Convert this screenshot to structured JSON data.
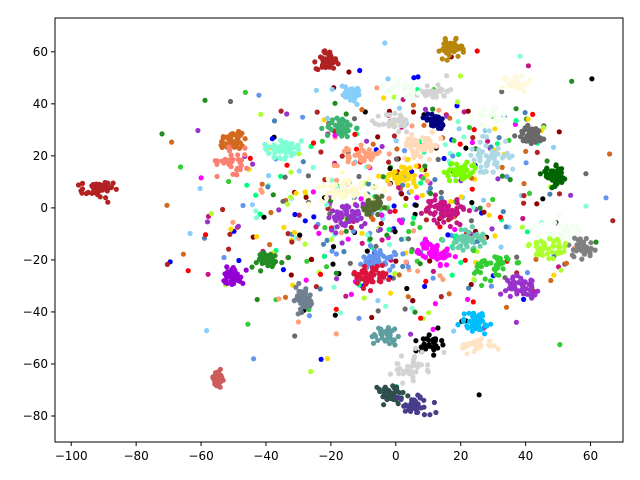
{
  "chart_data": {
    "type": "scatter",
    "title": "",
    "xlabel": "",
    "ylabel": "",
    "xlim": [
      -105,
      70
    ],
    "ylim": [
      -90,
      73
    ],
    "x_ticks": [
      -100,
      -80,
      -60,
      -40,
      -20,
      0,
      20,
      40,
      60
    ],
    "y_ticks": [
      -80,
      -60,
      -40,
      -20,
      0,
      20,
      40,
      60
    ],
    "x_tick_labels": [
      "−100",
      "−80",
      "−60",
      "−40",
      "−20",
      "0",
      "20",
      "40",
      "60"
    ],
    "y_tick_labels": [
      "−80",
      "−60",
      "−40",
      "−20",
      "0",
      "20",
      "40",
      "60"
    ],
    "grid": false,
    "legend": "none",
    "clusters": [
      {
        "color": "#b22222",
        "center": [
          -92,
          7
        ],
        "spread": [
          2.4,
          1.6
        ],
        "n": 45
      },
      {
        "color": "#cd5c5c",
        "center": [
          -55,
          -66
        ],
        "spread": [
          1.3,
          1.8
        ],
        "n": 30
      },
      {
        "color": "#b22222",
        "center": [
          -21,
          57
        ],
        "spread": [
          1.7,
          1.8
        ],
        "n": 45
      },
      {
        "color": "#b8860b",
        "center": [
          17,
          61
        ],
        "spread": [
          1.7,
          1.7
        ],
        "n": 45
      },
      {
        "color": "#87cefa",
        "center": [
          -14,
          44
        ],
        "spread": [
          2.2,
          1.6
        ],
        "n": 35
      },
      {
        "color": "#fff8dc",
        "center": [
          37,
          48
        ],
        "spread": [
          2.0,
          1.6
        ],
        "n": 30
      },
      {
        "color": "#d3d3d3",
        "center": [
          12,
          45
        ],
        "spread": [
          2.2,
          1.7
        ],
        "n": 30
      },
      {
        "color": "#f0fff0",
        "center": [
          3,
          45
        ],
        "spread": [
          3.0,
          2.0
        ],
        "n": 25
      },
      {
        "color": "#3cb371",
        "center": [
          -17,
          31
        ],
        "spread": [
          2.2,
          2.0
        ],
        "n": 40
      },
      {
        "color": "#d3d3d3",
        "center": [
          0,
          33
        ],
        "spread": [
          2.3,
          2.0
        ],
        "n": 35
      },
      {
        "color": "#000080",
        "center": [
          12,
          33
        ],
        "spread": [
          1.8,
          1.5
        ],
        "n": 35
      },
      {
        "color": "#696969",
        "center": [
          42,
          28
        ],
        "spread": [
          2.2,
          1.8
        ],
        "n": 45
      },
      {
        "color": "#f0fff0",
        "center": [
          30,
          35
        ],
        "spread": [
          2.5,
          2.0
        ],
        "n": 20
      },
      {
        "color": "#d2691e",
        "center": [
          -50,
          26
        ],
        "spread": [
          2.2,
          2.0
        ],
        "n": 45
      },
      {
        "color": "#fa8072",
        "center": [
          -50,
          18
        ],
        "spread": [
          2.5,
          2.5
        ],
        "n": 30
      },
      {
        "color": "#7fffd4",
        "center": [
          -35,
          23
        ],
        "spread": [
          3.0,
          1.8
        ],
        "n": 50
      },
      {
        "color": "#ffa07a",
        "center": [
          -10,
          20
        ],
        "spread": [
          2.5,
          1.8
        ],
        "n": 40
      },
      {
        "color": "#ffdab9",
        "center": [
          8,
          24
        ],
        "spread": [
          3.0,
          2.0
        ],
        "n": 45
      },
      {
        "color": "#add8e6",
        "center": [
          28,
          20
        ],
        "spread": [
          3.5,
          4.0
        ],
        "n": 50
      },
      {
        "color": "#006400",
        "center": [
          49,
          12
        ],
        "spread": [
          2.0,
          1.8
        ],
        "n": 45
      },
      {
        "color": "#7cfc00",
        "center": [
          20,
          14
        ],
        "spread": [
          2.5,
          2.0
        ],
        "n": 45
      },
      {
        "color": "#ffd700",
        "center": [
          2,
          12
        ],
        "spread": [
          3.0,
          2.5
        ],
        "n": 35
      },
      {
        "color": "#fffacd",
        "center": [
          -15,
          7
        ],
        "spread": [
          4.0,
          3.0
        ],
        "n": 50
      },
      {
        "color": "#556b2f",
        "center": [
          -7,
          0
        ],
        "spread": [
          1.8,
          1.8
        ],
        "n": 35
      },
      {
        "color": "#9932cc",
        "center": [
          -15,
          -3
        ],
        "spread": [
          3.0,
          2.5
        ],
        "n": 45
      },
      {
        "color": "#c71585",
        "center": [
          15,
          -1
        ],
        "spread": [
          3.0,
          2.5
        ],
        "n": 50
      },
      {
        "color": "#66cdaa",
        "center": [
          22,
          -12
        ],
        "spread": [
          2.5,
          2.0
        ],
        "n": 45
      },
      {
        "color": "#ff00ff",
        "center": [
          12,
          -17
        ],
        "spread": [
          2.5,
          2.0
        ],
        "n": 45
      },
      {
        "color": "#f0fff0",
        "center": [
          50,
          -10
        ],
        "spread": [
          4.0,
          2.5
        ],
        "n": 35
      },
      {
        "color": "#808080",
        "center": [
          57,
          -15
        ],
        "spread": [
          2.0,
          2.0
        ],
        "n": 35
      },
      {
        "color": "#adff2f",
        "center": [
          47,
          -16
        ],
        "spread": [
          3.0,
          3.0
        ],
        "n": 45
      },
      {
        "color": "#32cd32",
        "center": [
          30,
          -22
        ],
        "spread": [
          3.0,
          3.0
        ],
        "n": 40
      },
      {
        "color": "#6495ed",
        "center": [
          -5,
          -20
        ],
        "spread": [
          2.5,
          2.0
        ],
        "n": 45
      },
      {
        "color": "#dc143c",
        "center": [
          -8,
          -26
        ],
        "spread": [
          2.5,
          2.0
        ],
        "n": 50
      },
      {
        "color": "#9400d3",
        "center": [
          -50,
          -26
        ],
        "spread": [
          1.6,
          1.8
        ],
        "n": 35
      },
      {
        "color": "#228b22",
        "center": [
          -40,
          -20
        ],
        "spread": [
          2.5,
          1.6
        ],
        "n": 40
      },
      {
        "color": "#708090",
        "center": [
          -29,
          -35
        ],
        "spread": [
          2.0,
          2.5
        ],
        "n": 40
      },
      {
        "color": "#9932cc",
        "center": [
          39,
          -30
        ],
        "spread": [
          2.5,
          1.8
        ],
        "n": 45
      },
      {
        "color": "#00bfff",
        "center": [
          25,
          -44
        ],
        "spread": [
          2.5,
          2.2
        ],
        "n": 45
      },
      {
        "color": "#ffe4c4",
        "center": [
          25,
          -53
        ],
        "spread": [
          2.5,
          1.5
        ],
        "n": 30
      },
      {
        "color": "#5f9ea0",
        "center": [
          -3,
          -49
        ],
        "spread": [
          2.5,
          2.0
        ],
        "n": 30
      },
      {
        "color": "#000000",
        "center": [
          11,
          -52
        ],
        "spread": [
          1.5,
          2.0
        ],
        "n": 30
      },
      {
        "color": "#d3d3d3",
        "center": [
          4,
          -61
        ],
        "spread": [
          3.0,
          2.5
        ],
        "n": 35
      },
      {
        "color": "#2f4f4f",
        "center": [
          -2,
          -72
        ],
        "spread": [
          2.5,
          2.0
        ],
        "n": 45
      },
      {
        "color": "#483d8b",
        "center": [
          6,
          -76
        ],
        "spread": [
          2.5,
          2.0
        ],
        "n": 40
      }
    ],
    "noise": {
      "center": [
        0,
        0
      ],
      "spread": [
        28,
        25
      ],
      "n": 650,
      "colors": [
        "#0000ff",
        "#ff0000",
        "#000000",
        "#32cd32",
        "#ff00ff",
        "#ffd700",
        "#87cefa",
        "#228b22",
        "#9932cc",
        "#d2691e",
        "#00ff7f",
        "#8b0000",
        "#696969",
        "#4682b4",
        "#b22222",
        "#6495ed",
        "#ffa07a",
        "#adff2f",
        "#7fffd4",
        "#c71585"
      ]
    }
  }
}
